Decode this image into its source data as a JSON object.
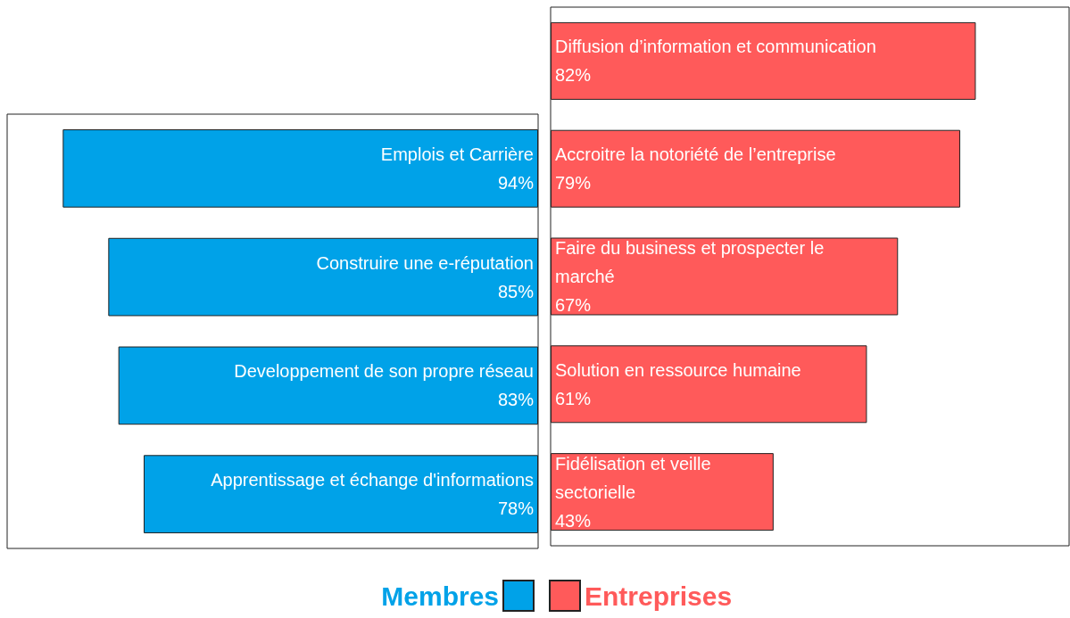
{
  "chart_data": [
    {
      "type": "bar",
      "orientation": "horizontal",
      "categories": [
        "Emplois et Carrière",
        "Construire une e-réputation",
        "Developpement de son propre réseau",
        "Apprentissage et échange d'informations"
      ],
      "series": [
        {
          "name": "Membres",
          "color": "#00a2e8",
          "values": [
            94,
            85,
            83,
            78
          ],
          "value_labels": [
            "94%",
            "85%",
            "83%",
            "78%"
          ]
        }
      ],
      "xlim": [
        105,
        0
      ],
      "grid": false,
      "legend": "bottom",
      "tick_labels": false
    },
    {
      "type": "bar",
      "orientation": "horizontal",
      "categories": [
        "Diffusion d’information et communication",
        "Accroitre la notoriété de l’entreprise",
        "Faire du business et prospecter le marché",
        "Solution en ressource humaine",
        "Fidélisation et veille sectorielle"
      ],
      "series": [
        {
          "name": "Entreprises",
          "color": "#ff5a5a",
          "values": [
            82,
            79,
            67,
            61,
            43
          ],
          "value_labels": [
            "82%",
            "79%",
            "67%",
            "61%",
            "43%"
          ]
        }
      ],
      "xlim": [
        0,
        100
      ],
      "grid": false,
      "legend": "bottom",
      "tick_labels": false
    }
  ]
}
